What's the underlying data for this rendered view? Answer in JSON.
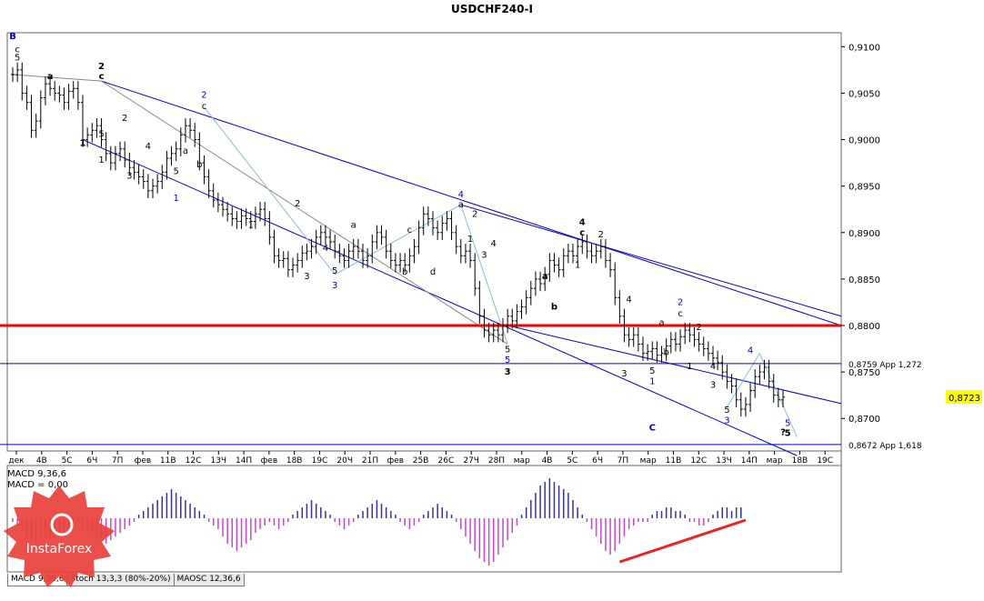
{
  "chart_data": {
    "type": "candlestick",
    "title": "USDCHF240-I",
    "symbol_current_price": "0,8723",
    "y_ticks": [
      "0,9100",
      "0,9050",
      "0,9000",
      "0,8950",
      "0,8900",
      "0,8850",
      "0,8800",
      "0,8750",
      "0,8700"
    ],
    "ylim": [
      0.8665,
      0.9115
    ],
    "x_ticks": [
      "дек",
      "4В",
      "5С",
      "6Ч",
      "7П",
      "фев",
      "11В",
      "12С",
      "13Ч",
      "14П",
      "фев",
      "18В",
      "19С",
      "20Ч",
      "21П",
      "фев",
      "25В",
      "26С",
      "27Ч",
      "28П",
      "мар",
      "4В",
      "5С",
      "6Ч",
      "7П",
      "мар",
      "11В",
      "12С",
      "13Ч",
      "14П",
      "мар",
      "18В",
      "19С"
    ],
    "close_series": [
      0.907,
      0.9075,
      0.905,
      0.904,
      0.901,
      0.902,
      0.9045,
      0.906,
      0.9055,
      0.905,
      0.9048,
      0.904,
      0.9052,
      0.9055,
      0.904,
      0.9,
      0.9005,
      0.901,
      0.9015,
      0.9,
      0.8985,
      0.8975,
      0.8985,
      0.899,
      0.8978,
      0.897,
      0.8965,
      0.896,
      0.8955,
      0.8945,
      0.895,
      0.8955,
      0.8965,
      0.898,
      0.8985,
      0.899,
      0.9005,
      0.9015,
      0.901,
      0.9,
      0.8975,
      0.896,
      0.8945,
      0.8935,
      0.893,
      0.8925,
      0.892,
      0.8915,
      0.8912,
      0.8918,
      0.8915,
      0.8912,
      0.892,
      0.8925,
      0.8915,
      0.8895,
      0.8875,
      0.887,
      0.8872,
      0.886,
      0.8865,
      0.887,
      0.8878,
      0.888,
      0.8885,
      0.8895,
      0.89,
      0.8895,
      0.889,
      0.888,
      0.8875,
      0.887,
      0.888,
      0.8885,
      0.888,
      0.887,
      0.8875,
      0.889,
      0.89,
      0.8895,
      0.888,
      0.887,
      0.8865,
      0.887,
      0.8865,
      0.8875,
      0.8885,
      0.8905,
      0.892,
      0.8915,
      0.8905,
      0.89,
      0.891,
      0.8915,
      0.89,
      0.8885,
      0.8875,
      0.888,
      0.887,
      0.884,
      0.881,
      0.8795,
      0.879,
      0.8795,
      0.879,
      0.88,
      0.881,
      0.8805,
      0.8815,
      0.882,
      0.883,
      0.884,
      0.885,
      0.8845,
      0.8855,
      0.887,
      0.8865,
      0.886,
      0.8875,
      0.888,
      0.8875,
      0.8885,
      0.889,
      0.888,
      0.8875,
      0.888,
      0.8885,
      0.887,
      0.886,
      0.883,
      0.881,
      0.879,
      0.8785,
      0.879,
      0.878,
      0.877,
      0.8772,
      0.8775,
      0.8768,
      0.877,
      0.8778,
      0.8785,
      0.878,
      0.8788,
      0.8795,
      0.879,
      0.8785,
      0.878,
      0.8775,
      0.877,
      0.8765,
      0.876,
      0.875,
      0.874,
      0.8735,
      0.872,
      0.871,
      0.8715,
      0.873,
      0.8745,
      0.875,
      0.8755,
      0.874,
      0.8725,
      0.872,
      0.8723
    ],
    "levels": [
      {
        "value": 0.88,
        "color": "#ff0000",
        "label": ""
      },
      {
        "value": 0.8759,
        "color": "#0000cc",
        "label": "0,8759 App 1,272"
      },
      {
        "value": 0.8672,
        "color": "#0000cc",
        "label": "0,8672 App 1,618"
      }
    ],
    "wave_labels": [
      {
        "i": 0,
        "v": 0.9108,
        "t": "B",
        "color": "#0000cc",
        "bold": true
      },
      {
        "i": 1,
        "v": 0.9094,
        "t": "c",
        "color": "#000"
      },
      {
        "i": 1,
        "v": 0.9085,
        "t": "5",
        "color": "#000"
      },
      {
        "i": 8,
        "v": 0.9065,
        "t": "a",
        "color": "#000",
        "bold": true
      },
      {
        "i": 15,
        "v": 0.8993,
        "t": "1",
        "color": "#000",
        "bold": true
      },
      {
        "i": 19,
        "v": 0.9076,
        "t": "2",
        "color": "#000",
        "bold": true
      },
      {
        "i": 19,
        "v": 0.9065,
        "t": "c",
        "color": "#000",
        "bold": true
      },
      {
        "i": 19,
        "v": 0.9003,
        "t": "5",
        "color": "#000"
      },
      {
        "i": 19,
        "v": 0.8975,
        "t": "1",
        "color": "#000"
      },
      {
        "i": 24,
        "v": 0.902,
        "t": "2",
        "color": "#000"
      },
      {
        "i": 25,
        "v": 0.8958,
        "t": "3",
        "color": "#000"
      },
      {
        "i": 29,
        "v": 0.899,
        "t": "4",
        "color": "#000"
      },
      {
        "i": 35,
        "v": 0.8963,
        "t": "5",
        "color": "#000"
      },
      {
        "i": 35,
        "v": 0.8934,
        "t": "1",
        "color": "#0000cc"
      },
      {
        "i": 37,
        "v": 0.8985,
        "t": "a",
        "color": "#000"
      },
      {
        "i": 40,
        "v": 0.897,
        "t": "b",
        "color": "#000"
      },
      {
        "i": 41,
        "v": 0.9045,
        "t": "2",
        "color": "#0000cc"
      },
      {
        "i": 41,
        "v": 0.9033,
        "t": "c",
        "color": "#000"
      },
      {
        "i": 51,
        "v": 0.8905,
        "t": "1",
        "color": "#000"
      },
      {
        "i": 61,
        "v": 0.8928,
        "t": "2",
        "color": "#000"
      },
      {
        "i": 63,
        "v": 0.885,
        "t": "3",
        "color": "#000"
      },
      {
        "i": 67,
        "v": 0.888,
        "t": "4",
        "color": "#000"
      },
      {
        "i": 69,
        "v": 0.8856,
        "t": "5",
        "color": "#000"
      },
      {
        "i": 69,
        "v": 0.884,
        "t": "3",
        "color": "#0000cc"
      },
      {
        "i": 73,
        "v": 0.8905,
        "t": "a",
        "color": "#000"
      },
      {
        "i": 84,
        "v": 0.8855,
        "t": "b",
        "color": "#000"
      },
      {
        "i": 85,
        "v": 0.89,
        "t": "c",
        "color": "#000"
      },
      {
        "i": 90,
        "v": 0.8855,
        "t": "d",
        "color": "#000"
      },
      {
        "i": 96,
        "v": 0.8938,
        "t": "4",
        "color": "#0000cc"
      },
      {
        "i": 96,
        "v": 0.8927,
        "t": "a",
        "color": "#000"
      },
      {
        "i": 98,
        "v": 0.889,
        "t": "1",
        "color": "#000"
      },
      {
        "i": 99,
        "v": 0.8917,
        "t": "2",
        "color": "#000"
      },
      {
        "i": 101,
        "v": 0.8873,
        "t": "3",
        "color": "#000"
      },
      {
        "i": 103,
        "v": 0.8885,
        "t": "4",
        "color": "#000"
      },
      {
        "i": 106,
        "v": 0.8771,
        "t": "5",
        "color": "#000"
      },
      {
        "i": 106,
        "v": 0.876,
        "t": "5",
        "color": "#0000cc"
      },
      {
        "i": 106,
        "v": 0.8747,
        "t": "3",
        "color": "#000",
        "bold": true
      },
      {
        "i": 114,
        "v": 0.885,
        "t": "a",
        "color": "#000",
        "bold": true
      },
      {
        "i": 116,
        "v": 0.8817,
        "t": "b",
        "color": "#000",
        "bold": true
      },
      {
        "i": 121,
        "v": 0.8862,
        "t": "1",
        "color": "#000"
      },
      {
        "i": 122,
        "v": 0.8908,
        "t": "4",
        "color": "#000",
        "bold": true
      },
      {
        "i": 122,
        "v": 0.8897,
        "t": "c",
        "color": "#000",
        "bold": true
      },
      {
        "i": 126,
        "v": 0.8895,
        "t": "2",
        "color": "#000"
      },
      {
        "i": 132,
        "v": 0.8825,
        "t": "4",
        "color": "#000"
      },
      {
        "i": 131,
        "v": 0.8745,
        "t": "3",
        "color": "#000"
      },
      {
        "i": 137,
        "v": 0.8748,
        "t": "5",
        "color": "#000"
      },
      {
        "i": 137,
        "v": 0.8737,
        "t": "1",
        "color": "#0000cc"
      },
      {
        "i": 140,
        "v": 0.8768,
        "t": "b",
        "color": "#000"
      },
      {
        "i": 139,
        "v": 0.88,
        "t": "a",
        "color": "#000"
      },
      {
        "i": 143,
        "v": 0.8822,
        "t": "2",
        "color": "#0000cc"
      },
      {
        "i": 143,
        "v": 0.881,
        "t": "c",
        "color": "#000"
      },
      {
        "i": 145,
        "v": 0.8753,
        "t": "1",
        "color": "#000"
      },
      {
        "i": 147,
        "v": 0.8795,
        "t": "2",
        "color": "#000"
      },
      {
        "i": 150,
        "v": 0.8753,
        "t": "4",
        "color": "#000"
      },
      {
        "i": 150,
        "v": 0.8733,
        "t": "3",
        "color": "#000"
      },
      {
        "i": 153,
        "v": 0.8706,
        "t": "5",
        "color": "#000"
      },
      {
        "i": 153,
        "v": 0.8695,
        "t": "3",
        "color": "#0000cc"
      },
      {
        "i": 158,
        "v": 0.877,
        "t": "4",
        "color": "#0000cc"
      },
      {
        "i": 137,
        "v": 0.8687,
        "t": "C",
        "color": "#0000cc",
        "bold": true
      },
      {
        "i": 166,
        "v": 0.8692,
        "t": "5",
        "color": "#0000cc"
      },
      {
        "i": 166,
        "v": 0.8681,
        "t": "5",
        "color": "#000",
        "bold": true
      },
      {
        "i": 165,
        "v": 0.8682,
        "t": "?",
        "color": "#000",
        "bold": true
      }
    ],
    "macd": {
      "label1": "MACD 9,36,6",
      "label2": "MACD = 0,00",
      "values": [
        -1,
        -2,
        -3,
        -5,
        -6,
        -7,
        -6,
        -5,
        -6,
        -5,
        -4,
        -4,
        -3,
        -2,
        -1,
        -2,
        -3,
        -4,
        -5,
        -6,
        -7,
        -6,
        -5,
        -4,
        -3,
        -2,
        -1,
        1,
        2,
        3,
        4,
        5,
        6,
        7,
        8,
        7,
        6,
        5,
        4,
        3,
        2,
        1,
        -1,
        -2,
        -3,
        -5,
        -7,
        -8,
        -9,
        -8,
        -7,
        -6,
        -4,
        -3,
        -2,
        -1,
        -2,
        -3,
        -2,
        -1,
        1,
        2,
        3,
        4,
        5,
        4,
        3,
        2,
        1,
        -1,
        -2,
        -3,
        -2,
        -1,
        1,
        2,
        3,
        4,
        5,
        4,
        3,
        2,
        1,
        -1,
        -2,
        -3,
        -2,
        -1,
        1,
        2,
        3,
        4,
        3,
        2,
        1,
        -1,
        -3,
        -5,
        -7,
        -9,
        -11,
        -12,
        -13,
        -12,
        -10,
        -8,
        -6,
        -4,
        -2,
        1,
        3,
        5,
        7,
        9,
        10,
        11,
        10,
        9,
        8,
        7,
        5,
        3,
        1,
        -1,
        -3,
        -5,
        -7,
        -9,
        -10,
        -9,
        -7,
        -5,
        -3,
        -2,
        -1,
        -1,
        -1,
        1,
        2,
        2,
        3,
        3,
        2,
        2,
        1,
        -1,
        -1,
        -2,
        -2,
        -1,
        1,
        2,
        3,
        3,
        2,
        3,
        3,
        0,
        0,
        0,
        0,
        0,
        0,
        0,
        0,
        0,
        0,
        0,
        0
      ]
    },
    "logo_text": "InstaForex",
    "tabs": [
      "MACD 9,36,6",
      "Stoch 13,3,3 (80%-20%)",
      "MAOSC 12,36,6"
    ]
  }
}
